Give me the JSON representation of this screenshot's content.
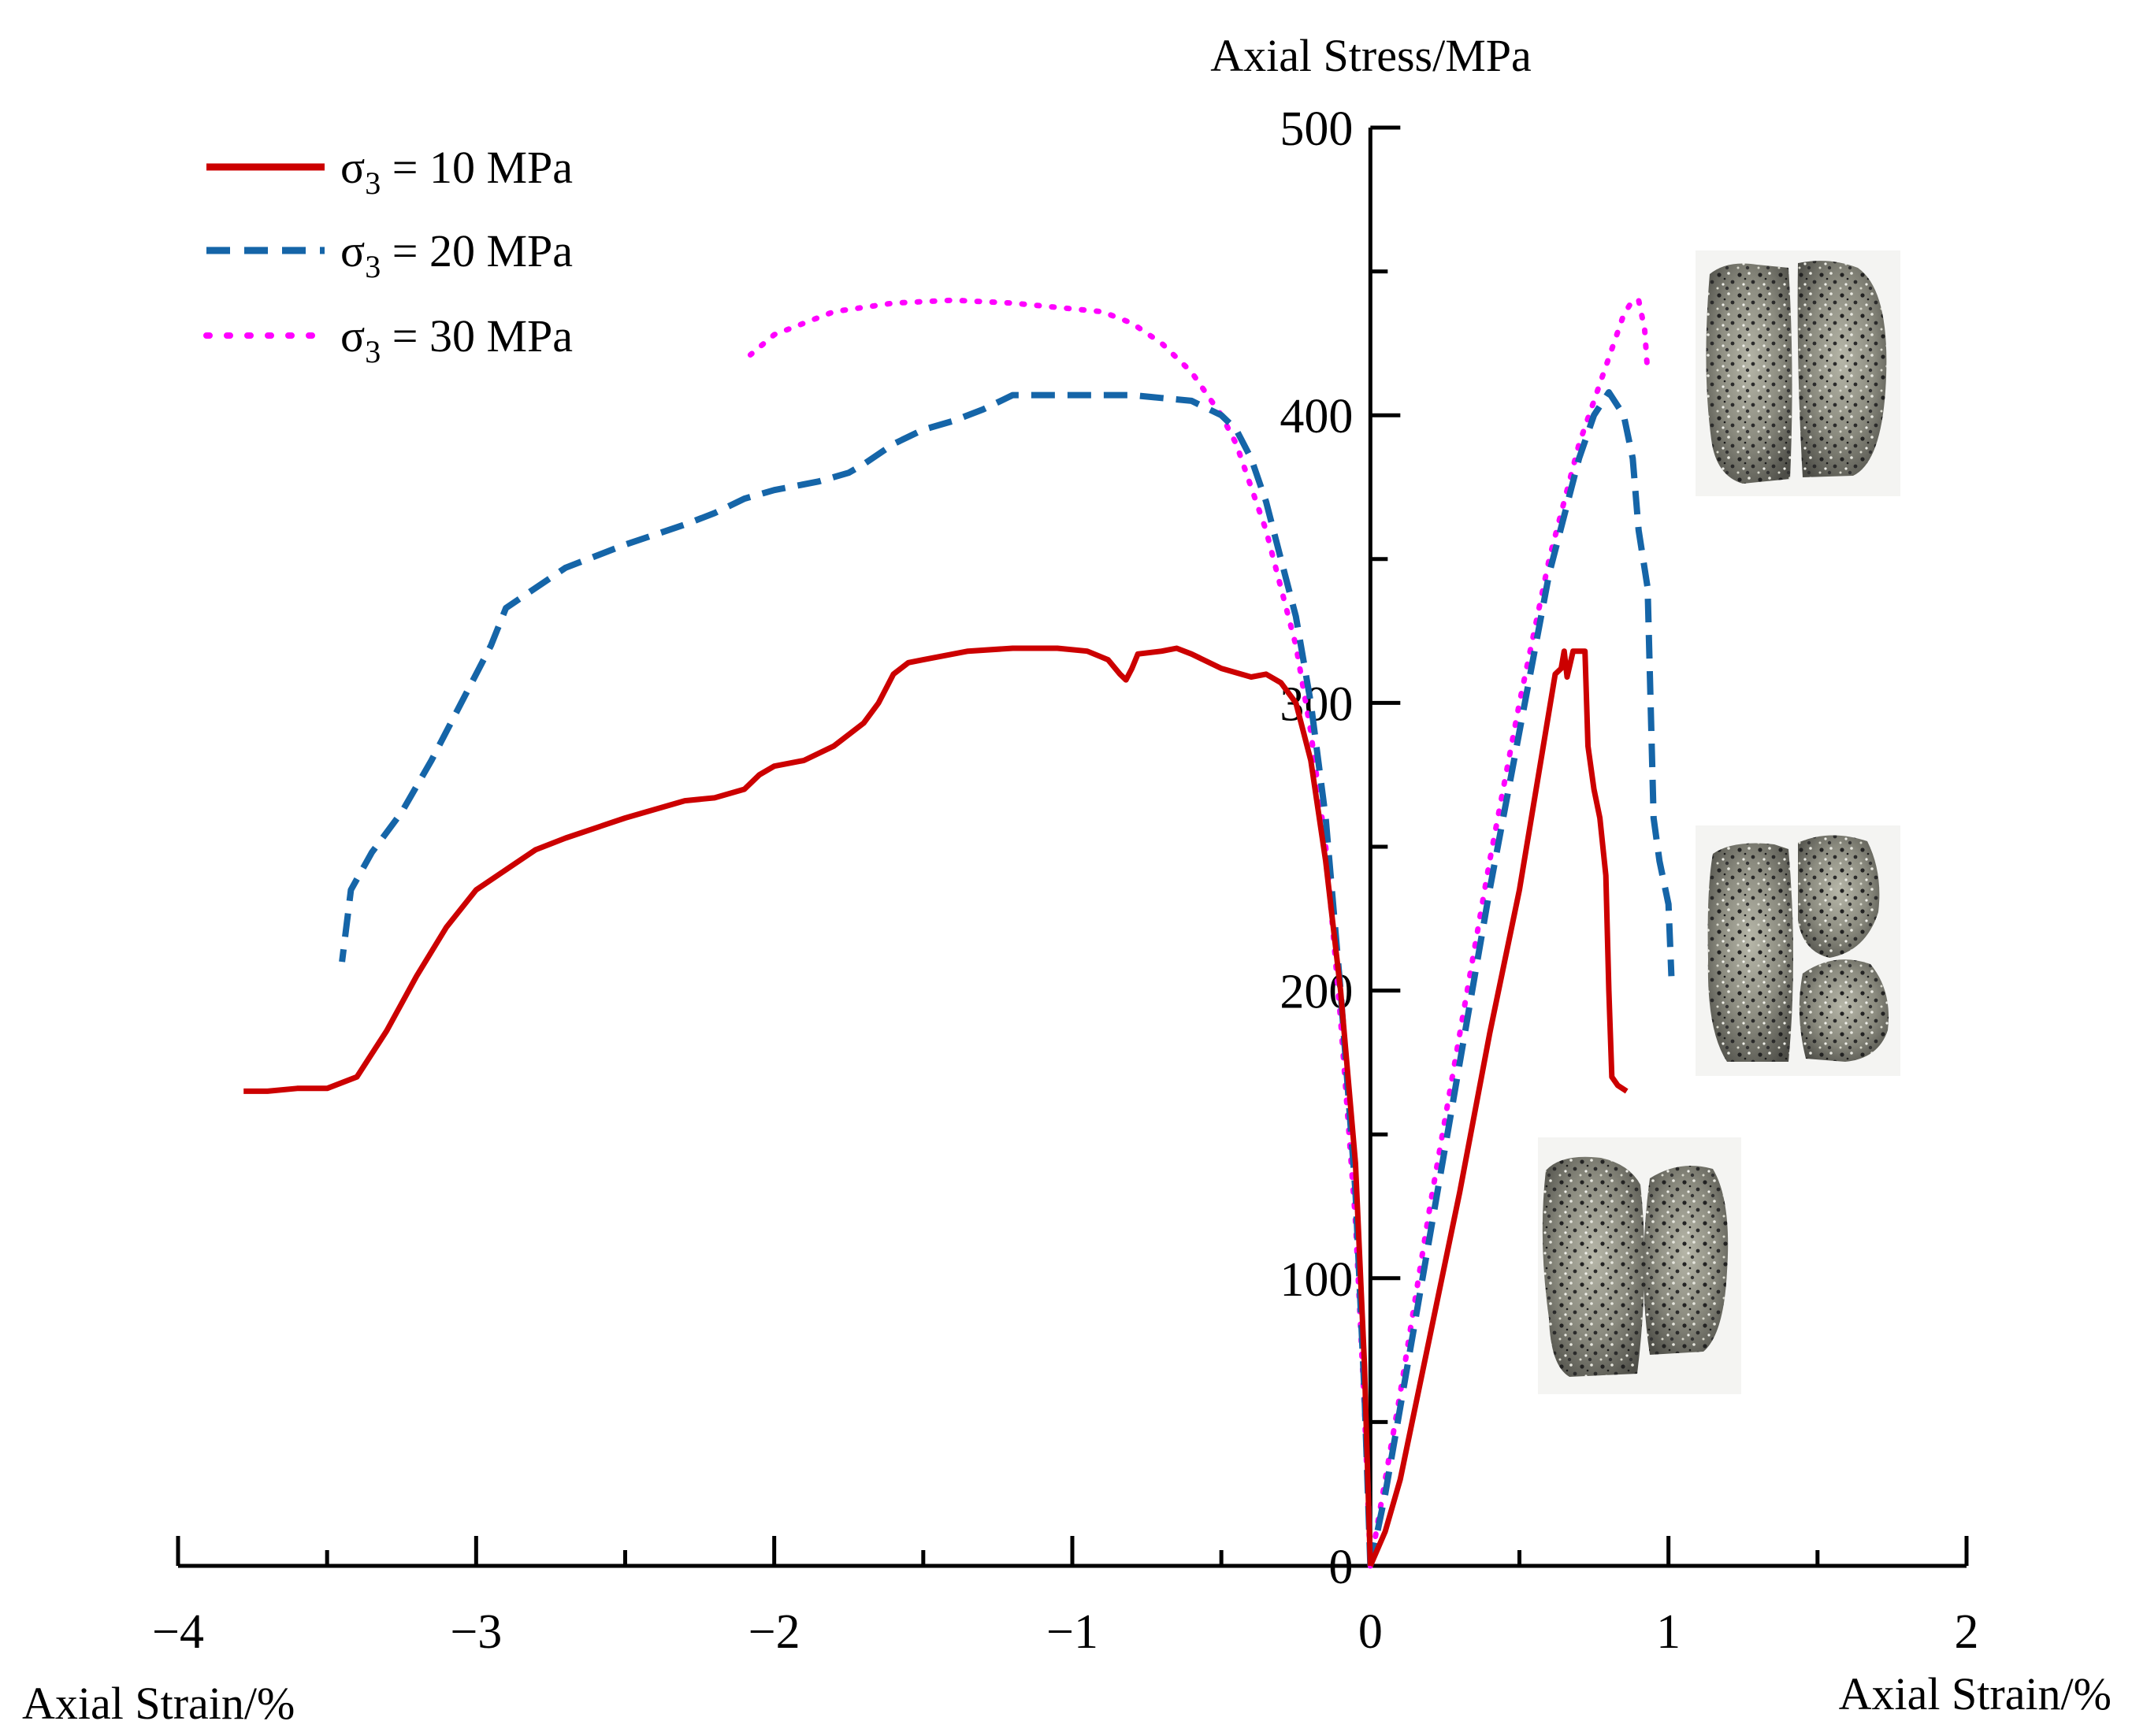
{
  "chart_data": {
    "type": "line",
    "title": "",
    "xlabel_left": "Axial Strain/%",
    "xlabel_right": "Axial Strain/%",
    "ylabel": "Axial Stress/MPa",
    "xlim": [
      -4,
      2
    ],
    "ylim": [
      0,
      500
    ],
    "x_ticks": [
      -4,
      -3,
      -2,
      -1,
      0,
      1,
      2
    ],
    "x_tick_labels": [
      "−4",
      "−3",
      "−2",
      "−1",
      "0",
      "1",
      "2"
    ],
    "y_ticks": [
      0,
      100,
      200,
      300,
      400,
      500
    ],
    "y_tick_labels": [
      "0",
      "100",
      "200",
      "300",
      "400",
      "500"
    ],
    "legend_position": "top-left",
    "series": [
      {
        "name": "σ₃ = 10 MPa",
        "legend_main": "σ",
        "legend_sub": "3",
        "legend_rest": " = 10 MPa",
        "color": "#cc0000",
        "style": "solid",
        "axial": [
          [
            0,
            0
          ],
          [
            0.05,
            12
          ],
          [
            0.1,
            30
          ],
          [
            0.2,
            80
          ],
          [
            0.3,
            130
          ],
          [
            0.4,
            185
          ],
          [
            0.5,
            235
          ],
          [
            0.58,
            285
          ],
          [
            0.62,
            310
          ],
          [
            0.64,
            312
          ],
          [
            0.65,
            318
          ],
          [
            0.66,
            309
          ],
          [
            0.68,
            318
          ],
          [
            0.7,
            318
          ],
          [
            0.72,
            318
          ],
          [
            0.73,
            285
          ],
          [
            0.75,
            270
          ],
          [
            0.77,
            260
          ],
          [
            0.79,
            240
          ],
          [
            0.8,
            200
          ],
          [
            0.81,
            170
          ],
          [
            0.83,
            167
          ],
          [
            0.86,
            165
          ]
        ],
        "lateral": [
          [
            0,
            0
          ],
          [
            -0.02,
            70
          ],
          [
            -0.05,
            140
          ],
          [
            -0.1,
            200
          ],
          [
            -0.15,
            245
          ],
          [
            -0.2,
            280
          ],
          [
            -0.25,
            300
          ],
          [
            -0.3,
            307
          ],
          [
            -0.35,
            310
          ],
          [
            -0.4,
            309
          ],
          [
            -0.5,
            312
          ],
          [
            -0.6,
            317
          ],
          [
            -0.65,
            319
          ],
          [
            -0.7,
            318
          ],
          [
            -0.78,
            317
          ],
          [
            -0.8,
            312
          ],
          [
            -0.82,
            308
          ],
          [
            -0.84,
            310
          ],
          [
            -0.88,
            315
          ],
          [
            -0.95,
            318
          ],
          [
            -1.05,
            319
          ],
          [
            -1.2,
            319
          ],
          [
            -1.35,
            318
          ],
          [
            -1.5,
            315
          ],
          [
            -1.55,
            314
          ],
          [
            -1.6,
            310
          ],
          [
            -1.65,
            300
          ],
          [
            -1.7,
            293
          ],
          [
            -1.8,
            285
          ],
          [
            -1.9,
            280
          ],
          [
            -2.0,
            278
          ],
          [
            -2.05,
            275
          ],
          [
            -2.1,
            270
          ],
          [
            -2.2,
            267
          ],
          [
            -2.3,
            266
          ],
          [
            -2.5,
            260
          ],
          [
            -2.7,
            253
          ],
          [
            -2.8,
            249
          ],
          [
            -2.9,
            242
          ],
          [
            -3.0,
            235
          ],
          [
            -3.1,
            222
          ],
          [
            -3.2,
            205
          ],
          [
            -3.3,
            186
          ],
          [
            -3.4,
            170
          ],
          [
            -3.5,
            166
          ],
          [
            -3.6,
            166
          ],
          [
            -3.7,
            165
          ],
          [
            -3.78,
            165
          ]
        ]
      },
      {
        "name": "σ₃ = 20 MPa",
        "legend_main": "σ",
        "legend_sub": "3",
        "legend_rest": " = 20 MPa",
        "color": "#1565a8",
        "style": "dashed",
        "axial": [
          [
            0,
            0
          ],
          [
            0.05,
            25
          ],
          [
            0.1,
            55
          ],
          [
            0.2,
            115
          ],
          [
            0.3,
            175
          ],
          [
            0.4,
            235
          ],
          [
            0.5,
            290
          ],
          [
            0.6,
            345
          ],
          [
            0.7,
            385
          ],
          [
            0.75,
            400
          ],
          [
            0.8,
            408
          ],
          [
            0.85,
            400
          ],
          [
            0.88,
            385
          ],
          [
            0.9,
            360
          ],
          [
            0.93,
            340
          ],
          [
            0.95,
            260
          ],
          [
            0.97,
            245
          ],
          [
            1.0,
            230
          ],
          [
            1.01,
            205
          ]
        ],
        "lateral": [
          [
            0,
            0
          ],
          [
            -0.02,
            60
          ],
          [
            -0.05,
            130
          ],
          [
            -0.1,
            200
          ],
          [
            -0.15,
            260
          ],
          [
            -0.2,
            300
          ],
          [
            -0.25,
            330
          ],
          [
            -0.3,
            350
          ],
          [
            -0.35,
            370
          ],
          [
            -0.4,
            385
          ],
          [
            -0.45,
            395
          ],
          [
            -0.5,
            400
          ],
          [
            -0.6,
            405
          ],
          [
            -0.7,
            406
          ],
          [
            -0.8,
            407
          ],
          [
            -0.9,
            407
          ],
          [
            -1.0,
            407
          ],
          [
            -1.1,
            407
          ],
          [
            -1.2,
            407
          ],
          [
            -1.3,
            402
          ],
          [
            -1.4,
            398
          ],
          [
            -1.5,
            395
          ],
          [
            -1.6,
            390
          ],
          [
            -1.7,
            383
          ],
          [
            -1.75,
            380
          ],
          [
            -1.85,
            377
          ],
          [
            -2.0,
            374
          ],
          [
            -2.1,
            371
          ],
          [
            -2.2,
            366
          ],
          [
            -2.3,
            362
          ],
          [
            -2.5,
            355
          ],
          [
            -2.6,
            351
          ],
          [
            -2.7,
            347
          ],
          [
            -2.8,
            340
          ],
          [
            -2.9,
            333
          ],
          [
            -2.95,
            320
          ],
          [
            -3.05,
            300
          ],
          [
            -3.15,
            280
          ],
          [
            -3.25,
            262
          ],
          [
            -3.35,
            248
          ],
          [
            -3.42,
            235
          ],
          [
            -3.45,
            210
          ]
        ]
      },
      {
        "name": "σ₃ = 30 MPa",
        "legend_main": "σ",
        "legend_sub": "3",
        "legend_rest": " = 30 MPa",
        "color": "#ff00ff",
        "style": "dotted",
        "axial": [
          [
            0,
            0
          ],
          [
            0.05,
            30
          ],
          [
            0.1,
            60
          ],
          [
            0.2,
            125
          ],
          [
            0.3,
            185
          ],
          [
            0.4,
            245
          ],
          [
            0.5,
            300
          ],
          [
            0.6,
            350
          ],
          [
            0.7,
            390
          ],
          [
            0.8,
            420
          ],
          [
            0.85,
            435
          ],
          [
            0.88,
            440
          ],
          [
            0.9,
            440
          ],
          [
            0.92,
            430
          ],
          [
            0.93,
            415
          ]
        ],
        "lateral": [
          [
            0,
            0
          ],
          [
            -0.02,
            55
          ],
          [
            -0.05,
            120
          ],
          [
            -0.1,
            190
          ],
          [
            -0.15,
            250
          ],
          [
            -0.2,
            290
          ],
          [
            -0.25,
            320
          ],
          [
            -0.3,
            340
          ],
          [
            -0.35,
            360
          ],
          [
            -0.4,
            375
          ],
          [
            -0.45,
            390
          ],
          [
            -0.5,
            400
          ],
          [
            -0.6,
            415
          ],
          [
            -0.7,
            425
          ],
          [
            -0.8,
            432
          ],
          [
            -0.9,
            436
          ],
          [
            -1.0,
            437
          ],
          [
            -1.2,
            439
          ],
          [
            -1.4,
            440
          ],
          [
            -1.6,
            439
          ],
          [
            -1.8,
            436
          ],
          [
            -2.0,
            428
          ],
          [
            -2.08,
            421
          ]
        ]
      }
    ],
    "images": [
      {
        "name": "specimen-photo-30mpa"
      },
      {
        "name": "specimen-photo-20mpa"
      },
      {
        "name": "specimen-photo-10mpa"
      }
    ]
  }
}
